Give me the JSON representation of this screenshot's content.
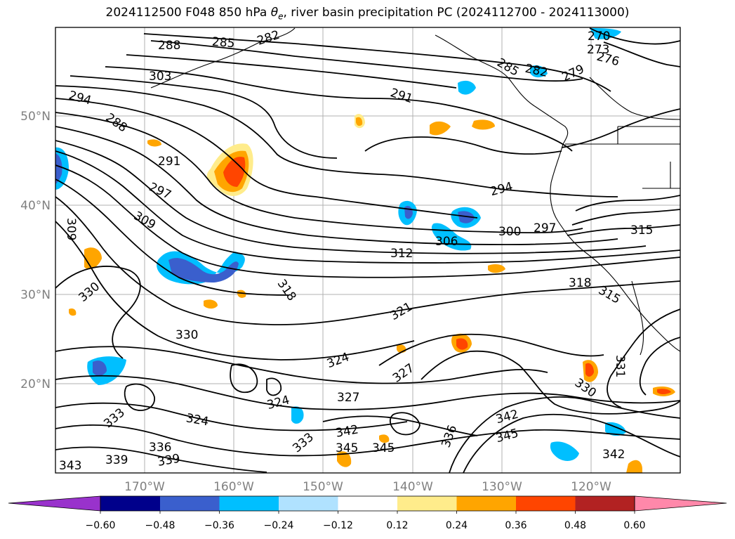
{
  "title": {
    "prefix": "2024112500 F048 850 hPa ",
    "theta": "θ",
    "sub": "e",
    "suffix": ", river basin precipitation PC (2024112700 - 2024113000)"
  },
  "axes": {
    "lat_labels": [
      "50°N",
      "40°N",
      "30°N",
      "20°N"
    ],
    "lon_labels": [
      "170°W",
      "160°W",
      "150°W",
      "140°W",
      "130°W",
      "120°W"
    ]
  },
  "contour_labels": [
    "270",
    "273",
    "276",
    "279",
    "282",
    "285",
    "282",
    "285",
    "288",
    "291",
    "294",
    "288",
    "291",
    "294",
    "297",
    "300",
    "297",
    "303",
    "306",
    "309",
    "309",
    "312",
    "315",
    "315",
    "318",
    "318",
    "321",
    "324",
    "324",
    "324",
    "327",
    "327",
    "330",
    "330",
    "330",
    "331",
    "333",
    "333",
    "336",
    "336",
    "339",
    "339",
    "342",
    "342",
    "342",
    "345",
    "345",
    "345",
    "343"
  ],
  "colorbar": {
    "ticks": [
      "−0.60",
      "−0.48",
      "−0.36",
      "−0.24",
      "−0.12",
      "0.12",
      "0.24",
      "0.36",
      "0.48",
      "0.60"
    ],
    "colors": [
      "#9932cc",
      "#00008b",
      "#3a5fcd",
      "#00bfff",
      "#b0e2ff",
      "#ffffff",
      "#ffec8b",
      "#ffa500",
      "#ff4500",
      "#b22222",
      "#ff88aa"
    ]
  }
}
